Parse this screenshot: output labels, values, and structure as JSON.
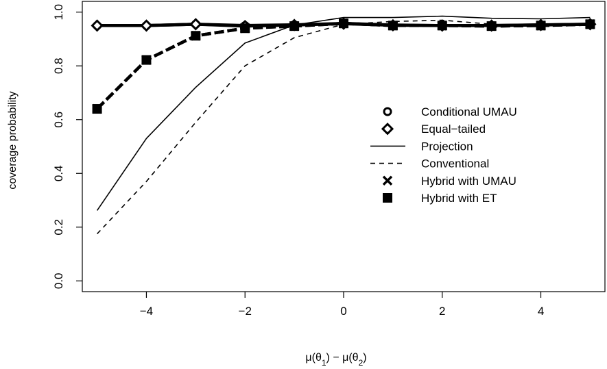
{
  "chart_data": {
    "type": "line",
    "xlabel": "μ(θ1) − μ(θ2)",
    "ylabel": "coverage probability",
    "xlim": [
      -5.3,
      5.3
    ],
    "ylim": [
      -0.04,
      1.04
    ],
    "x_ticks": [
      -4,
      -2,
      0,
      2,
      4
    ],
    "x_tick_labels": [
      "−4",
      "−2",
      "0",
      "2",
      "4"
    ],
    "y_ticks": [
      0.0,
      0.2,
      0.4,
      0.6,
      0.8,
      1.0
    ],
    "y_tick_labels": [
      "0.0",
      "0.2",
      "0.4",
      "0.6",
      "0.8",
      "1.0"
    ],
    "grid": false,
    "legend_position": "center-right",
    "series": [
      {
        "name": "Conditional UMAU",
        "style": "thick-solid",
        "marker": "circle",
        "x": [
          -5,
          -4,
          -3,
          -2,
          -1,
          0,
          1,
          2,
          3,
          4,
          5
        ],
        "y": [
          0.95,
          0.95,
          0.955,
          0.95,
          0.953,
          0.958,
          0.952,
          0.95,
          0.95,
          0.953,
          0.955
        ]
      },
      {
        "name": "Equal−tailed",
        "style": "thick-solid",
        "marker": "diamond",
        "x": [
          -5,
          -4,
          -3,
          -2,
          -1,
          0,
          1,
          2,
          3,
          4,
          5
        ],
        "y": [
          0.95,
          0.95,
          0.955,
          0.948,
          0.952,
          0.957,
          0.951,
          0.95,
          0.95,
          0.952,
          0.955
        ]
      },
      {
        "name": "Projection",
        "style": "solid",
        "marker": "none",
        "x": [
          -5,
          -4,
          -3,
          -2,
          -1,
          0,
          1,
          2,
          3,
          4,
          5
        ],
        "y": [
          0.262,
          0.53,
          0.72,
          0.885,
          0.952,
          0.98,
          0.98,
          0.985,
          0.977,
          0.975,
          0.98
        ]
      },
      {
        "name": "Conventional",
        "style": "dashed",
        "marker": "none",
        "x": [
          -5,
          -4,
          -3,
          -2,
          -1,
          0,
          1,
          2,
          3,
          4,
          5
        ],
        "y": [
          0.175,
          0.37,
          0.59,
          0.8,
          0.905,
          0.955,
          0.965,
          0.97,
          0.955,
          0.95,
          0.955
        ]
      },
      {
        "name": "Hybrid with UMAU",
        "style": "thick-dashed",
        "marker": "cross",
        "x": [
          -5,
          -4,
          -3,
          -2,
          -1,
          0,
          1,
          2,
          3,
          4,
          5
        ],
        "y": [
          0.64,
          0.822,
          0.912,
          0.94,
          0.948,
          0.958,
          0.95,
          0.95,
          0.948,
          0.95,
          0.955
        ]
      },
      {
        "name": "Hybrid with ET",
        "style": "thick-dashed",
        "marker": "square",
        "x": [
          -5,
          -4,
          -3,
          -2,
          -1,
          0,
          1,
          2,
          3,
          4,
          5
        ],
        "y": [
          0.64,
          0.822,
          0.912,
          0.94,
          0.948,
          0.958,
          0.95,
          0.95,
          0.948,
          0.95,
          0.955
        ]
      }
    ]
  }
}
